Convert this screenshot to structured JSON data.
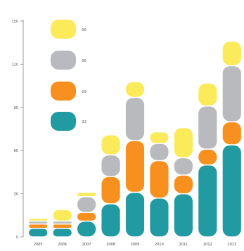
{
  "chart_data": {
    "type": "bar",
    "stacked": true,
    "title": "",
    "xlabel": "",
    "ylabel": "",
    "ylim": [
      0,
      150
    ],
    "yticks": [
      0,
      30,
      60,
      90,
      120,
      150
    ],
    "grid": false,
    "legend_position": "left",
    "categories": [
      "2005",
      "2006",
      "2007",
      "2008",
      "2009",
      "2010",
      "2011",
      "2012",
      "2013"
    ],
    "series": [
      {
        "name": "22",
        "color": "#219aa2",
        "values": [
          6,
          6,
          11,
          23,
          31,
          27,
          30,
          50,
          64
        ]
      },
      {
        "name": "29",
        "color": "#f7901e",
        "values": [
          3,
          3,
          6,
          19,
          36,
          26,
          13,
          11,
          16
        ]
      },
      {
        "name": "35",
        "color": "#b9babd",
        "values": [
          2,
          2,
          11,
          15,
          30,
          12,
          12,
          30,
          39
        ]
      },
      {
        "name": "56",
        "color": "#fbea5a",
        "values": [
          2,
          8,
          3,
          14,
          11,
          8,
          21,
          16,
          17
        ]
      }
    ]
  }
}
